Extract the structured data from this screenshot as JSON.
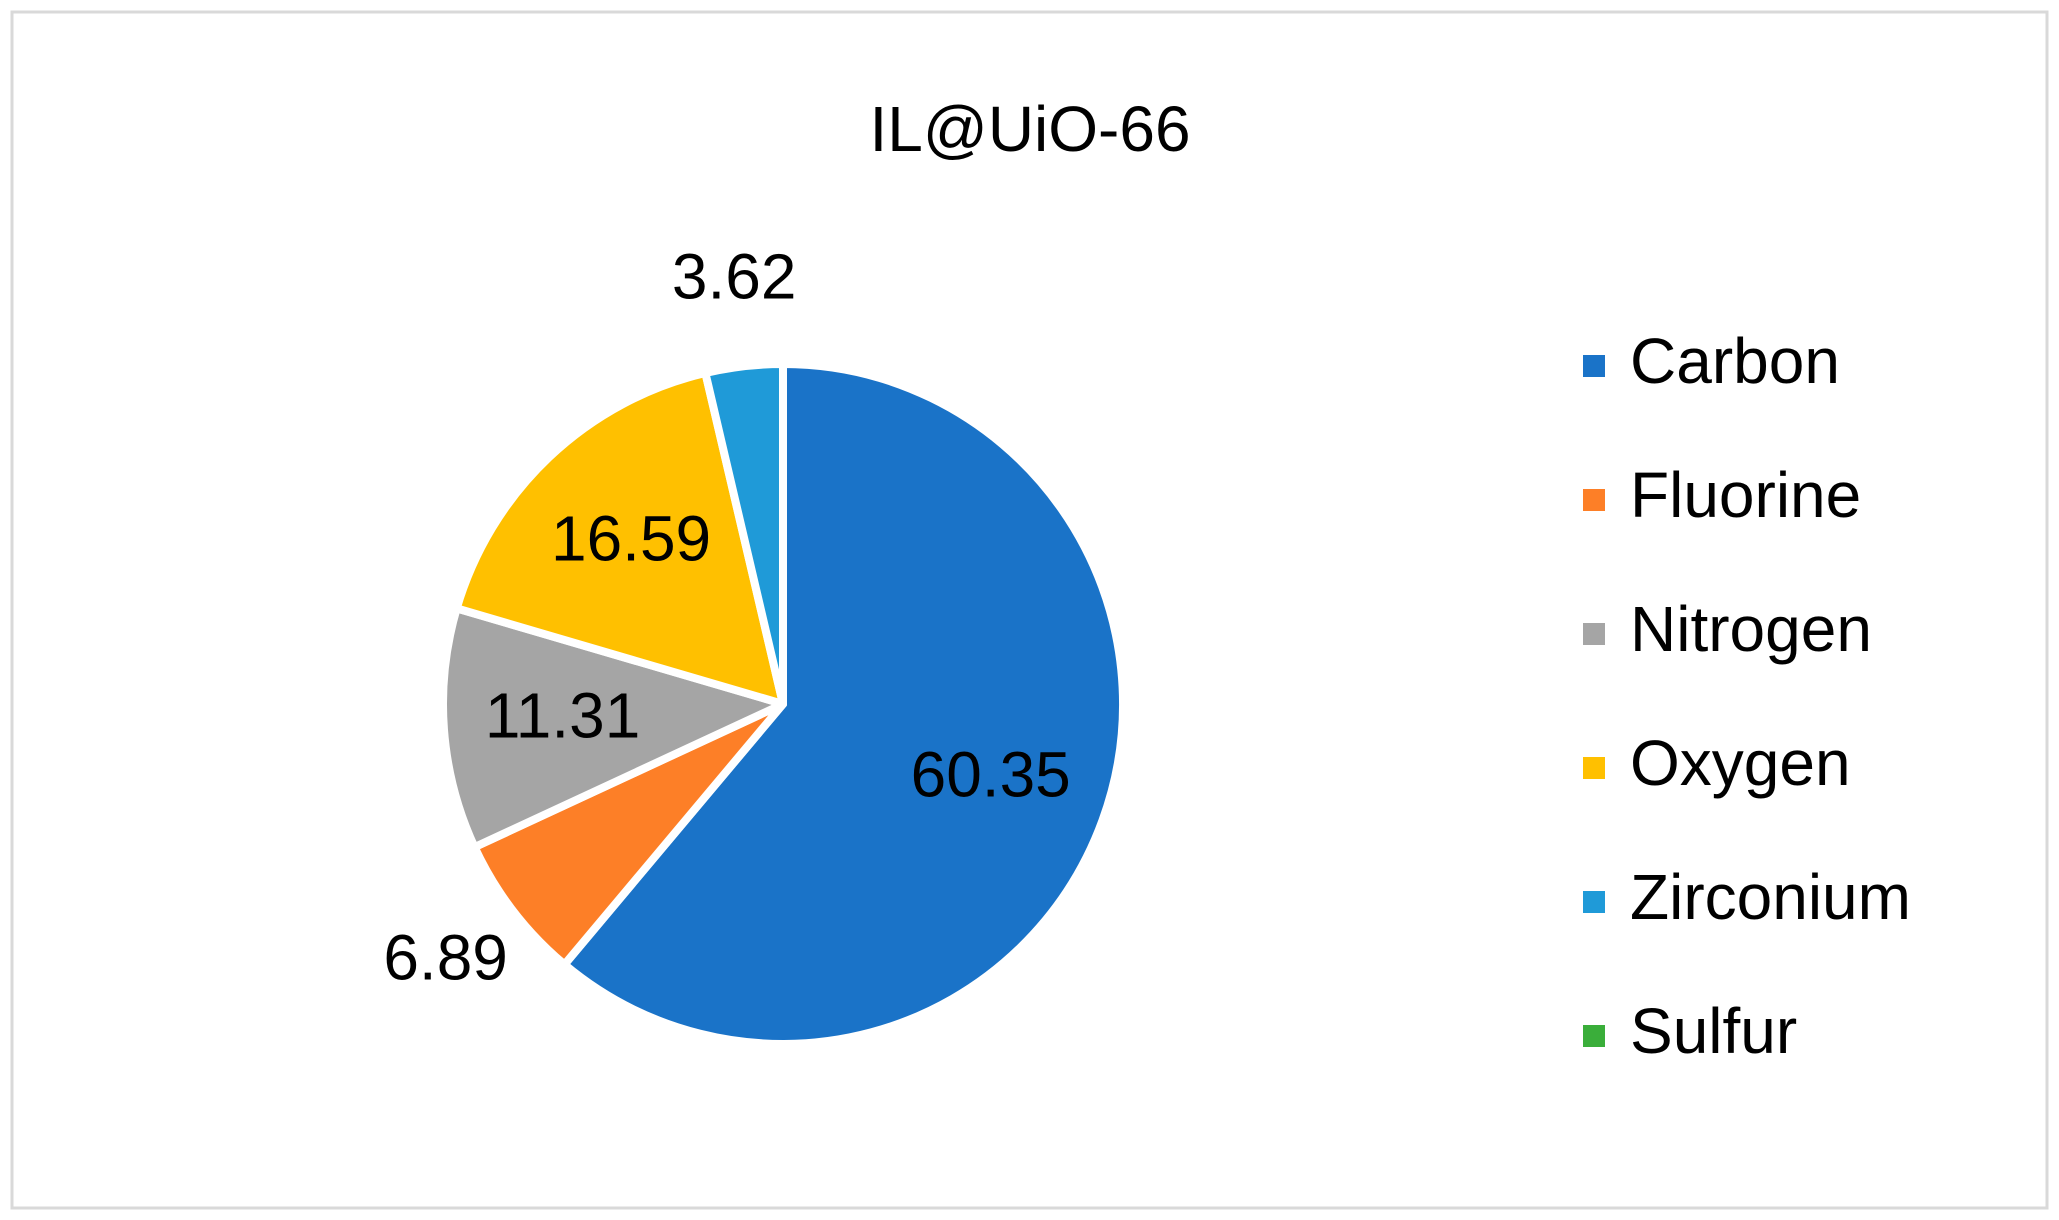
{
  "chart_data": {
    "type": "pie",
    "title": "IL@UiO-66",
    "categories": [
      "Carbon",
      "Fluorine",
      "Nitrogen",
      "Oxygen",
      "Zirconium",
      "Sulfur"
    ],
    "values": [
      60.35,
      6.89,
      11.31,
      16.59,
      3.62,
      0
    ],
    "value_labels": [
      "60.35",
      "6.89",
      "11.31",
      "16.59",
      "3.62",
      null
    ],
    "colors": [
      "#1a73c8",
      "#fd7f27",
      "#a5a5a5",
      "#ffc000",
      "#1f9ad8",
      "#3aae3a"
    ],
    "legend": "right"
  }
}
